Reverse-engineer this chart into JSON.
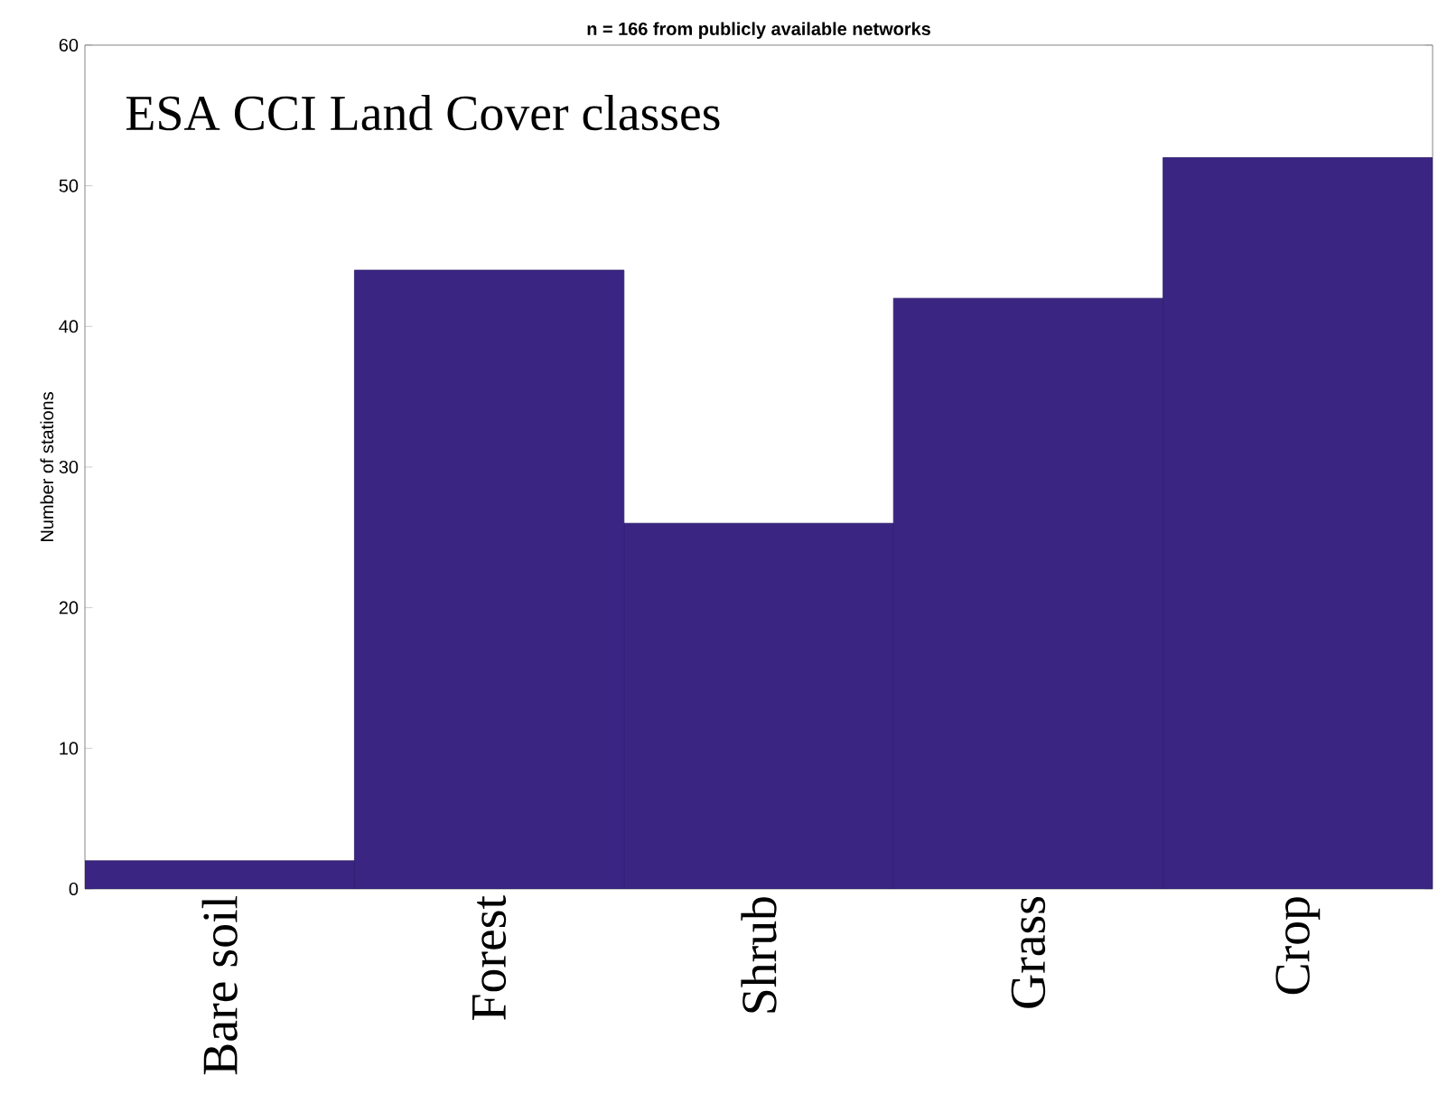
{
  "chart_data": {
    "type": "bar",
    "title": "n = 166 from publicly available networks",
    "ylabel": "Number of stations",
    "annotations": [
      "ESA CCI Land Cover classes"
    ],
    "categories": [
      "Bare soil",
      "Forest",
      "Shrub",
      "Grass",
      "Crop"
    ],
    "values": [
      2,
      44,
      26,
      42,
      52
    ],
    "color": "#3a2583",
    "ylim": [
      0,
      60
    ],
    "yticks": [
      0,
      10,
      20,
      30,
      40,
      50,
      60
    ],
    "grid": false
  }
}
